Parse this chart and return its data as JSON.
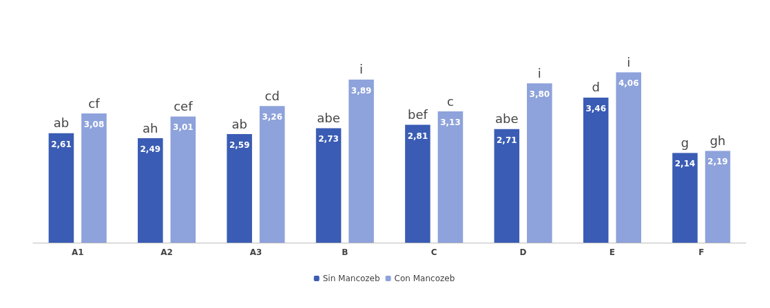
{
  "chart_data": {
    "type": "bar",
    "categories": [
      "A1",
      "A2",
      "A3",
      "B",
      "C",
      "D",
      "E",
      "F"
    ],
    "series": [
      {
        "name": "Sin Mancozeb",
        "color": "#3a5cb4",
        "values": [
          2.61,
          2.49,
          2.59,
          2.73,
          2.81,
          2.71,
          3.46,
          2.14
        ],
        "value_labels": [
          "2,61",
          "2,49",
          "2,59",
          "2,73",
          "2,81",
          "2,71",
          "3,46",
          "2,14"
        ]
      },
      {
        "name": "Con Mancozeb",
        "color": "#8ea2db",
        "values": [
          3.08,
          3.01,
          3.26,
          3.89,
          3.13,
          3.8,
          4.06,
          2.19
        ],
        "value_labels": [
          "3,08",
          "3,01",
          "3,26",
          "3,89",
          "3,13",
          "3,80",
          "4,06",
          "2,19"
        ]
      }
    ],
    "annotations": [
      "ab",
      "cf",
      "ah",
      "cef",
      "ab",
      "cd",
      "abe",
      "i",
      "bef",
      "c",
      "abe",
      "i",
      "d",
      "i",
      "g",
      "gh"
    ],
    "legend": "bottom"
  }
}
